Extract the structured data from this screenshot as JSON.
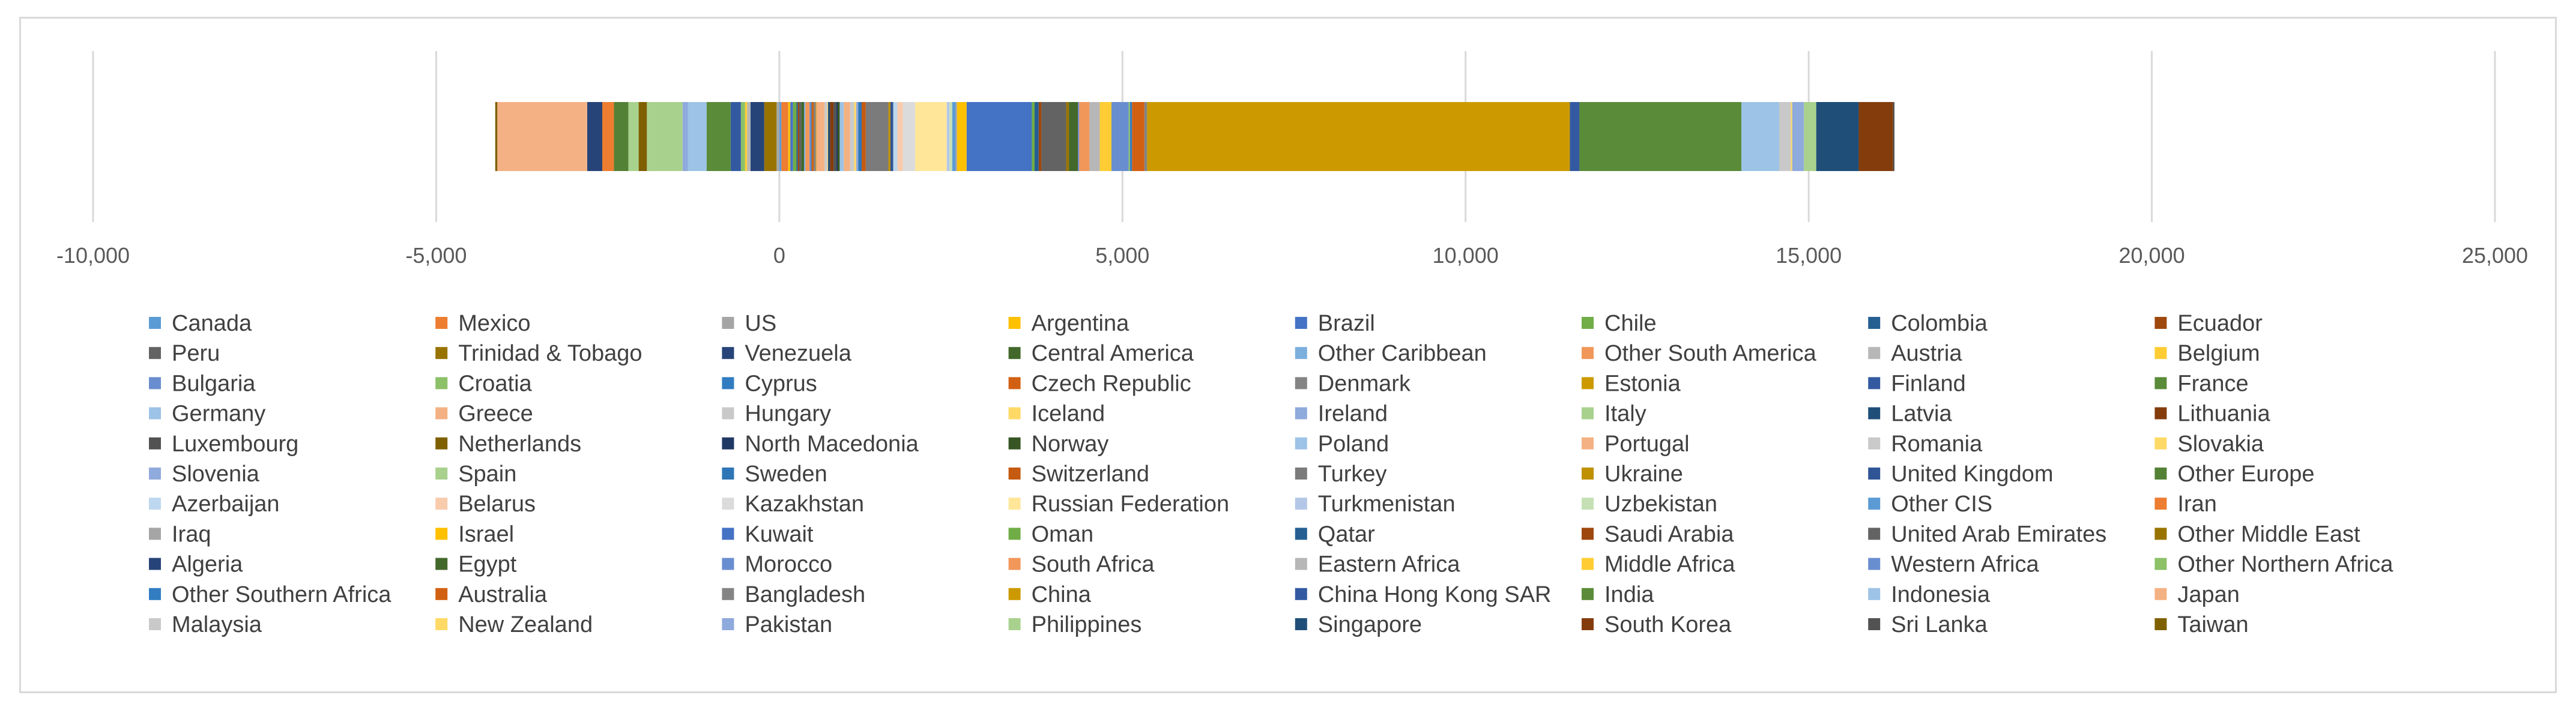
{
  "chart_data": {
    "type": "bar",
    "orientation": "horizontal",
    "stacked": true,
    "title": "",
    "xlabel": "",
    "ylabel": "",
    "xlim": [
      -10000,
      25000
    ],
    "x_ticks": [
      -10000,
      -5000,
      0,
      5000,
      10000,
      15000,
      20000,
      25000
    ],
    "x_tick_labels": [
      "-10,000",
      "-5,000",
      "0",
      "5,000",
      "10,000",
      "15,000",
      "20,000",
      "25,000"
    ],
    "grid": "vertical",
    "legend_position": "bottom",
    "series": [
      {
        "name": "Canada",
        "color": "#5B9BD5",
        "value": 30
      },
      {
        "name": "Mexico",
        "color": "#ED7D31",
        "value": 100
      },
      {
        "name": "US",
        "color": "#A5A5A5",
        "value": -40
      },
      {
        "name": "Argentina",
        "color": "#FFC000",
        "value": 30
      },
      {
        "name": "Brazil",
        "color": "#4472C4",
        "value": 40
      },
      {
        "name": "Chile",
        "color": "#70AD47",
        "value": 50
      },
      {
        "name": "Colombia",
        "color": "#255E91",
        "value": 20
      },
      {
        "name": "Ecuador",
        "color": "#9E480E",
        "value": 20
      },
      {
        "name": "Peru",
        "color": "#636363",
        "value": 30
      },
      {
        "name": "Trinidad & Tobago",
        "color": "#997300",
        "value": -180
      },
      {
        "name": "Venezuela",
        "color": "#264478",
        "value": -200
      },
      {
        "name": "Central America",
        "color": "#43682B",
        "value": 40
      },
      {
        "name": "Other Caribbean",
        "color": "#7CAFDD",
        "value": 20
      },
      {
        "name": "Other South America",
        "color": "#F1975A",
        "value": 60
      },
      {
        "name": "Austria",
        "color": "#B7B7B7",
        "value": -50
      },
      {
        "name": "Belgium",
        "color": "#FFCD33",
        "value": -30
      },
      {
        "name": "Bulgaria",
        "color": "#698ED0",
        "value": 20
      },
      {
        "name": "Croatia",
        "color": "#8CC168",
        "value": -60
      },
      {
        "name": "Cyprus",
        "color": "#327DC2",
        "value": 10
      },
      {
        "name": "Czech Republic",
        "color": "#D26012",
        "value": 30
      },
      {
        "name": "Denmark",
        "color": "#848484",
        "value": 30
      },
      {
        "name": "Estonia",
        "color": "#CC9A00",
        "value": 10
      },
      {
        "name": "Finland",
        "color": "#335AA1",
        "value": -150
      },
      {
        "name": "France",
        "color": "#5A8B39",
        "value": -350
      },
      {
        "name": "Germany",
        "color": "#9DC3E6",
        "value": -270
      },
      {
        "name": "Greece",
        "color": "#F4B183",
        "value": 120
      },
      {
        "name": "Hungary",
        "color": "#C9C9C9",
        "value": 40
      },
      {
        "name": "Iceland",
        "color": "#FFD966",
        "value": 10
      },
      {
        "name": "Ireland",
        "color": "#8FAADC",
        "value": -80
      },
      {
        "name": "Italy",
        "color": "#A9D18E",
        "value": -520
      },
      {
        "name": "Latvia",
        "color": "#1F4E79",
        "value": 30
      },
      {
        "name": "Lithuania",
        "color": "#843C0C",
        "value": 50
      },
      {
        "name": "Luxembourg",
        "color": "#525252",
        "value": 40
      },
      {
        "name": "Netherlands",
        "color": "#7F6000",
        "value": -120
      },
      {
        "name": "North Macedonia",
        "color": "#203864",
        "value": 20
      },
      {
        "name": "Norway",
        "color": "#375623",
        "value": 30
      },
      {
        "name": "Poland",
        "color": "#9DC3E6",
        "value": 60
      },
      {
        "name": "Portugal",
        "color": "#F4B183",
        "value": 90
      },
      {
        "name": "Romania",
        "color": "#C9C9C9",
        "value": 60
      },
      {
        "name": "Slovakia",
        "color": "#FFD966",
        "value": 30
      },
      {
        "name": "Slovenia",
        "color": "#8FAADC",
        "value": 30
      },
      {
        "name": "Spain",
        "color": "#A9D18E",
        "value": -150
      },
      {
        "name": "Sweden",
        "color": "#2E75B6",
        "value": 50
      },
      {
        "name": "Switzerland",
        "color": "#C55A11",
        "value": 60
      },
      {
        "name": "Turkey",
        "color": "#7B7B7B",
        "value": 330
      },
      {
        "name": "Ukraine",
        "color": "#BF9000",
        "value": 30
      },
      {
        "name": "United Kingdom",
        "color": "#2F5597",
        "value": 40
      },
      {
        "name": "Other Europe",
        "color": "#538135",
        "value": -210
      },
      {
        "name": "Azerbaijan",
        "color": "#BDD7EE",
        "value": 60
      },
      {
        "name": "Belarus",
        "color": "#F8CBAD",
        "value": 80
      },
      {
        "name": "Kazakhstan",
        "color": "#DBDBDB",
        "value": 180
      },
      {
        "name": "Russian Federation",
        "color": "#FFE699",
        "value": 460
      },
      {
        "name": "Turkmenistan",
        "color": "#B4C7E7",
        "value": 40
      },
      {
        "name": "Uzbekistan",
        "color": "#C5E0B4",
        "value": 40
      },
      {
        "name": "Other CIS",
        "color": "#5B9BD5",
        "value": 50
      },
      {
        "name": "Iran",
        "color": "#ED7D31",
        "value": -170
      },
      {
        "name": "Iraq",
        "color": "#A5A5A5",
        "value": 20
      },
      {
        "name": "Israel",
        "color": "#FFC000",
        "value": 140
      },
      {
        "name": "Kuwait",
        "color": "#4472C4",
        "value": 950
      },
      {
        "name": "Oman",
        "color": "#70AD47",
        "value": 40
      },
      {
        "name": "Qatar",
        "color": "#255E91",
        "value": 60
      },
      {
        "name": "Saudi Arabia",
        "color": "#9E480E",
        "value": 40
      },
      {
        "name": "United Arab Emirates",
        "color": "#636363",
        "value": 360
      },
      {
        "name": "Other Middle East",
        "color": "#997300",
        "value": 40
      },
      {
        "name": "Algeria",
        "color": "#264478",
        "value": -220
      },
      {
        "name": "Egypt",
        "color": "#43682B",
        "value": 130
      },
      {
        "name": "Morocco",
        "color": "#698ED0",
        "value": 20
      },
      {
        "name": "South Africa",
        "color": "#F1975A",
        "value": 150
      },
      {
        "name": "Eastern Africa",
        "color": "#B7B7B7",
        "value": 150
      },
      {
        "name": "Middle Africa",
        "color": "#FFCD33",
        "value": 170
      },
      {
        "name": "Western Africa",
        "color": "#698ED0",
        "value": 250
      },
      {
        "name": "Other Northern Africa",
        "color": "#8CC168",
        "value": 20
      },
      {
        "name": "Other Southern Africa",
        "color": "#327DC2",
        "value": 30
      },
      {
        "name": "Australia",
        "color": "#D26012",
        "value": 180
      },
      {
        "name": "Bangladesh",
        "color": "#848484",
        "value": 40
      },
      {
        "name": "China",
        "color": "#CC9A00",
        "value": 6160
      },
      {
        "name": "China Hong Kong SAR",
        "color": "#335AA1",
        "value": 140
      },
      {
        "name": "India",
        "color": "#5A8B39",
        "value": 2360
      },
      {
        "name": "Indonesia",
        "color": "#9DC3E6",
        "value": 550
      },
      {
        "name": "Japan",
        "color": "#F4B183",
        "value": -1310
      },
      {
        "name": "Malaysia",
        "color": "#C9C9C9",
        "value": 170
      },
      {
        "name": "New Zealand",
        "color": "#FFD966",
        "value": 20
      },
      {
        "name": "Pakistan",
        "color": "#8FAADC",
        "value": 170
      },
      {
        "name": "Philippines",
        "color": "#A9D18E",
        "value": 180
      },
      {
        "name": "Singapore",
        "color": "#1F4E79",
        "value": 620
      },
      {
        "name": "South Korea",
        "color": "#843C0C",
        "value": 500
      },
      {
        "name": "Sri Lanka",
        "color": "#525252",
        "value": 20
      },
      {
        "name": "Taiwan",
        "color": "#7F6000",
        "value": -30
      }
    ]
  }
}
